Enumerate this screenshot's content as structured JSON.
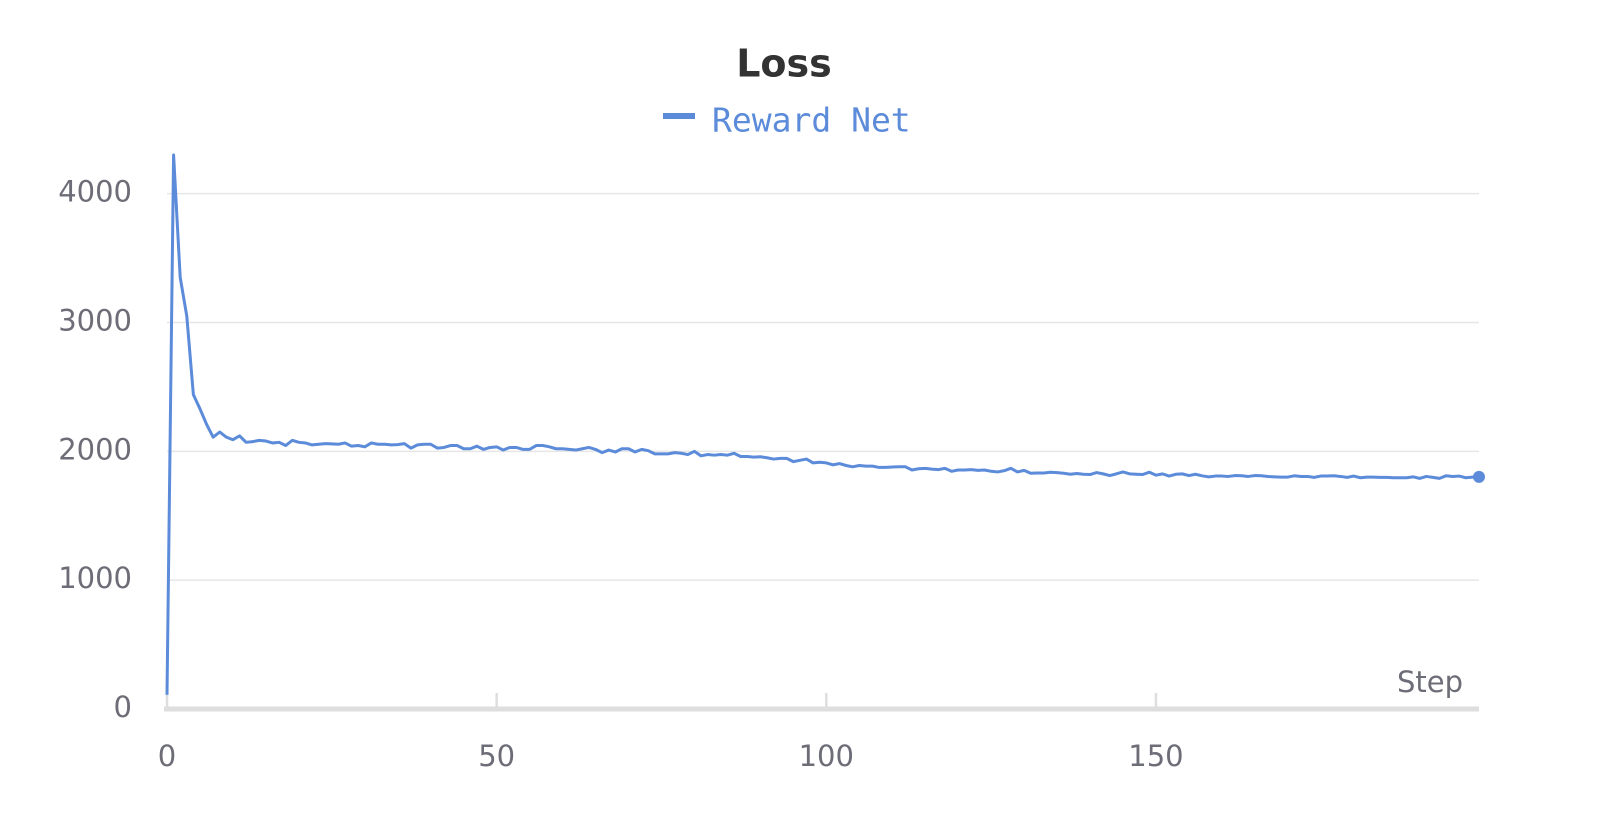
{
  "chart_data": {
    "type": "line",
    "title": "Loss",
    "xlabel": "Step",
    "x": [
      0,
      1,
      2,
      3,
      4,
      5,
      6,
      7,
      8,
      9,
      10,
      11,
      12,
      13,
      14,
      15,
      16,
      17,
      18,
      19,
      20,
      21,
      22,
      23,
      24,
      25,
      26,
      27,
      28,
      29,
      30,
      31,
      32,
      33,
      34,
      35,
      36,
      37,
      38,
      39,
      40,
      41,
      42,
      43,
      44,
      45,
      46,
      47,
      48,
      49,
      50,
      51,
      52,
      53,
      54,
      55,
      56,
      57,
      58,
      59,
      60,
      61,
      62,
      63,
      64,
      65,
      66,
      67,
      68,
      69,
      70,
      71,
      72,
      73,
      74,
      75,
      76,
      77,
      78,
      79,
      80,
      81,
      82,
      83,
      84,
      85,
      86,
      87,
      88,
      89,
      90,
      91,
      92,
      93,
      94,
      95,
      96,
      97,
      98,
      99,
      100,
      101,
      102,
      103,
      104,
      105,
      106,
      107,
      108,
      109,
      110,
      111,
      112,
      113,
      114,
      115,
      116,
      117,
      118,
      119,
      120,
      121,
      122,
      123,
      124,
      125,
      126,
      127,
      128,
      129,
      130,
      131,
      132,
      133,
      134,
      135,
      136,
      137,
      138,
      139,
      140,
      141,
      142,
      143,
      144,
      145,
      146,
      147,
      148,
      149,
      150,
      151,
      152,
      153,
      154,
      155,
      156,
      157,
      158,
      159,
      160,
      161,
      162,
      163,
      164,
      165,
      166,
      167,
      168,
      169,
      170,
      171,
      172,
      173,
      174,
      175,
      176,
      177,
      178,
      179,
      180,
      181,
      182,
      183,
      184,
      185,
      186,
      187,
      188,
      189,
      190,
      191,
      192,
      193,
      194,
      195,
      196,
      197,
      198,
      199
    ],
    "series": [
      {
        "name": "Reward Net",
        "color": "#5b8bd9",
        "values": [
          110,
          4300,
          3350,
          3050,
          2440,
          2330,
          2210,
          2110,
          2150,
          2110,
          2090,
          2120,
          2070,
          2075,
          2085,
          2080,
          2065,
          2070,
          2045,
          2085,
          2070,
          2065,
          2050,
          2055,
          2060,
          2058,
          2055,
          2065,
          2040,
          2045,
          2035,
          2065,
          2055,
          2055,
          2050,
          2052,
          2060,
          2025,
          2050,
          2055,
          2055,
          2025,
          2030,
          2045,
          2045,
          2020,
          2020,
          2040,
          2015,
          2030,
          2035,
          2010,
          2030,
          2030,
          2015,
          2015,
          2045,
          2045,
          2035,
          2020,
          2020,
          2015,
          2010,
          2020,
          2030,
          2015,
          1990,
          2010,
          1995,
          2020,
          2020,
          1995,
          2015,
          2005,
          1980,
          1980,
          1980,
          1990,
          1985,
          1975,
          2000,
          1965,
          1975,
          1970,
          1975,
          1970,
          1985,
          1960,
          1960,
          1955,
          1958,
          1950,
          1940,
          1945,
          1945,
          1920,
          1930,
          1940,
          1910,
          1915,
          1910,
          1895,
          1905,
          1890,
          1880,
          1890,
          1885,
          1885,
          1875,
          1875,
          1878,
          1880,
          1880,
          1855,
          1865,
          1868,
          1862,
          1858,
          1868,
          1845,
          1855,
          1855,
          1858,
          1852,
          1855,
          1845,
          1840,
          1850,
          1868,
          1840,
          1852,
          1830,
          1832,
          1832,
          1838,
          1835,
          1830,
          1822,
          1828,
          1822,
          1820,
          1835,
          1825,
          1812,
          1825,
          1840,
          1825,
          1822,
          1820,
          1838,
          1815,
          1825,
          1808,
          1822,
          1825,
          1812,
          1822,
          1810,
          1802,
          1808,
          1808,
          1805,
          1812,
          1810,
          1805,
          1812,
          1810,
          1805,
          1802,
          1800,
          1800,
          1810,
          1805,
          1805,
          1798,
          1808,
          1808,
          1810,
          1805,
          1798,
          1808,
          1795,
          1800,
          1800,
          1798,
          1798,
          1795,
          1795,
          1795,
          1802,
          1790,
          1805,
          1798,
          1790,
          1810,
          1805,
          1808,
          1795,
          1800,
          1802
        ]
      }
    ],
    "xlim": [
      0,
      199
    ],
    "ylim": [
      0,
      4300
    ],
    "xticks": [
      0,
      50,
      100,
      150
    ],
    "yticks": [
      0,
      1000,
      2000,
      3000,
      4000
    ],
    "grid": true
  }
}
